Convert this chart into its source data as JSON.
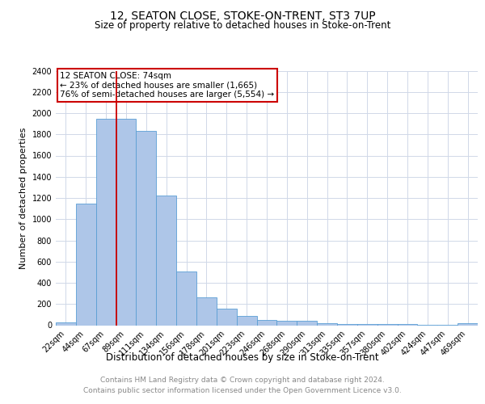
{
  "title": "12, SEATON CLOSE, STOKE-ON-TRENT, ST3 7UP",
  "subtitle": "Size of property relative to detached houses in Stoke-on-Trent",
  "xlabel": "Distribution of detached houses by size in Stoke-on-Trent",
  "ylabel": "Number of detached properties",
  "categories": [
    "22sqm",
    "44sqm",
    "67sqm",
    "89sqm",
    "111sqm",
    "134sqm",
    "156sqm",
    "178sqm",
    "201sqm",
    "223sqm",
    "246sqm",
    "268sqm",
    "290sqm",
    "313sqm",
    "335sqm",
    "357sqm",
    "380sqm",
    "402sqm",
    "424sqm",
    "447sqm",
    "469sqm"
  ],
  "values": [
    30,
    1150,
    1950,
    1950,
    1830,
    1220,
    510,
    265,
    155,
    88,
    50,
    40,
    40,
    20,
    15,
    10,
    8,
    8,
    5,
    5,
    22
  ],
  "bar_color": "#aec6e8",
  "bar_edge_color": "#5a9fd4",
  "grid_color": "#d0d8e8",
  "vline_x": 2.5,
  "vline_color": "#cc0000",
  "annotation_text": "12 SEATON CLOSE: 74sqm\n← 23% of detached houses are smaller (1,665)\n76% of semi-detached houses are larger (5,554) →",
  "annotation_box_color": "#cc0000",
  "ylim": [
    0,
    2400
  ],
  "yticks": [
    0,
    200,
    400,
    600,
    800,
    1000,
    1200,
    1400,
    1600,
    1800,
    2000,
    2200,
    2400
  ],
  "footer_line1": "Contains HM Land Registry data © Crown copyright and database right 2024.",
  "footer_line2": "Contains public sector information licensed under the Open Government Licence v3.0.",
  "title_fontsize": 10,
  "subtitle_fontsize": 8.5,
  "xlabel_fontsize": 8.5,
  "ylabel_fontsize": 8,
  "tick_fontsize": 7,
  "footer_fontsize": 6.5
}
